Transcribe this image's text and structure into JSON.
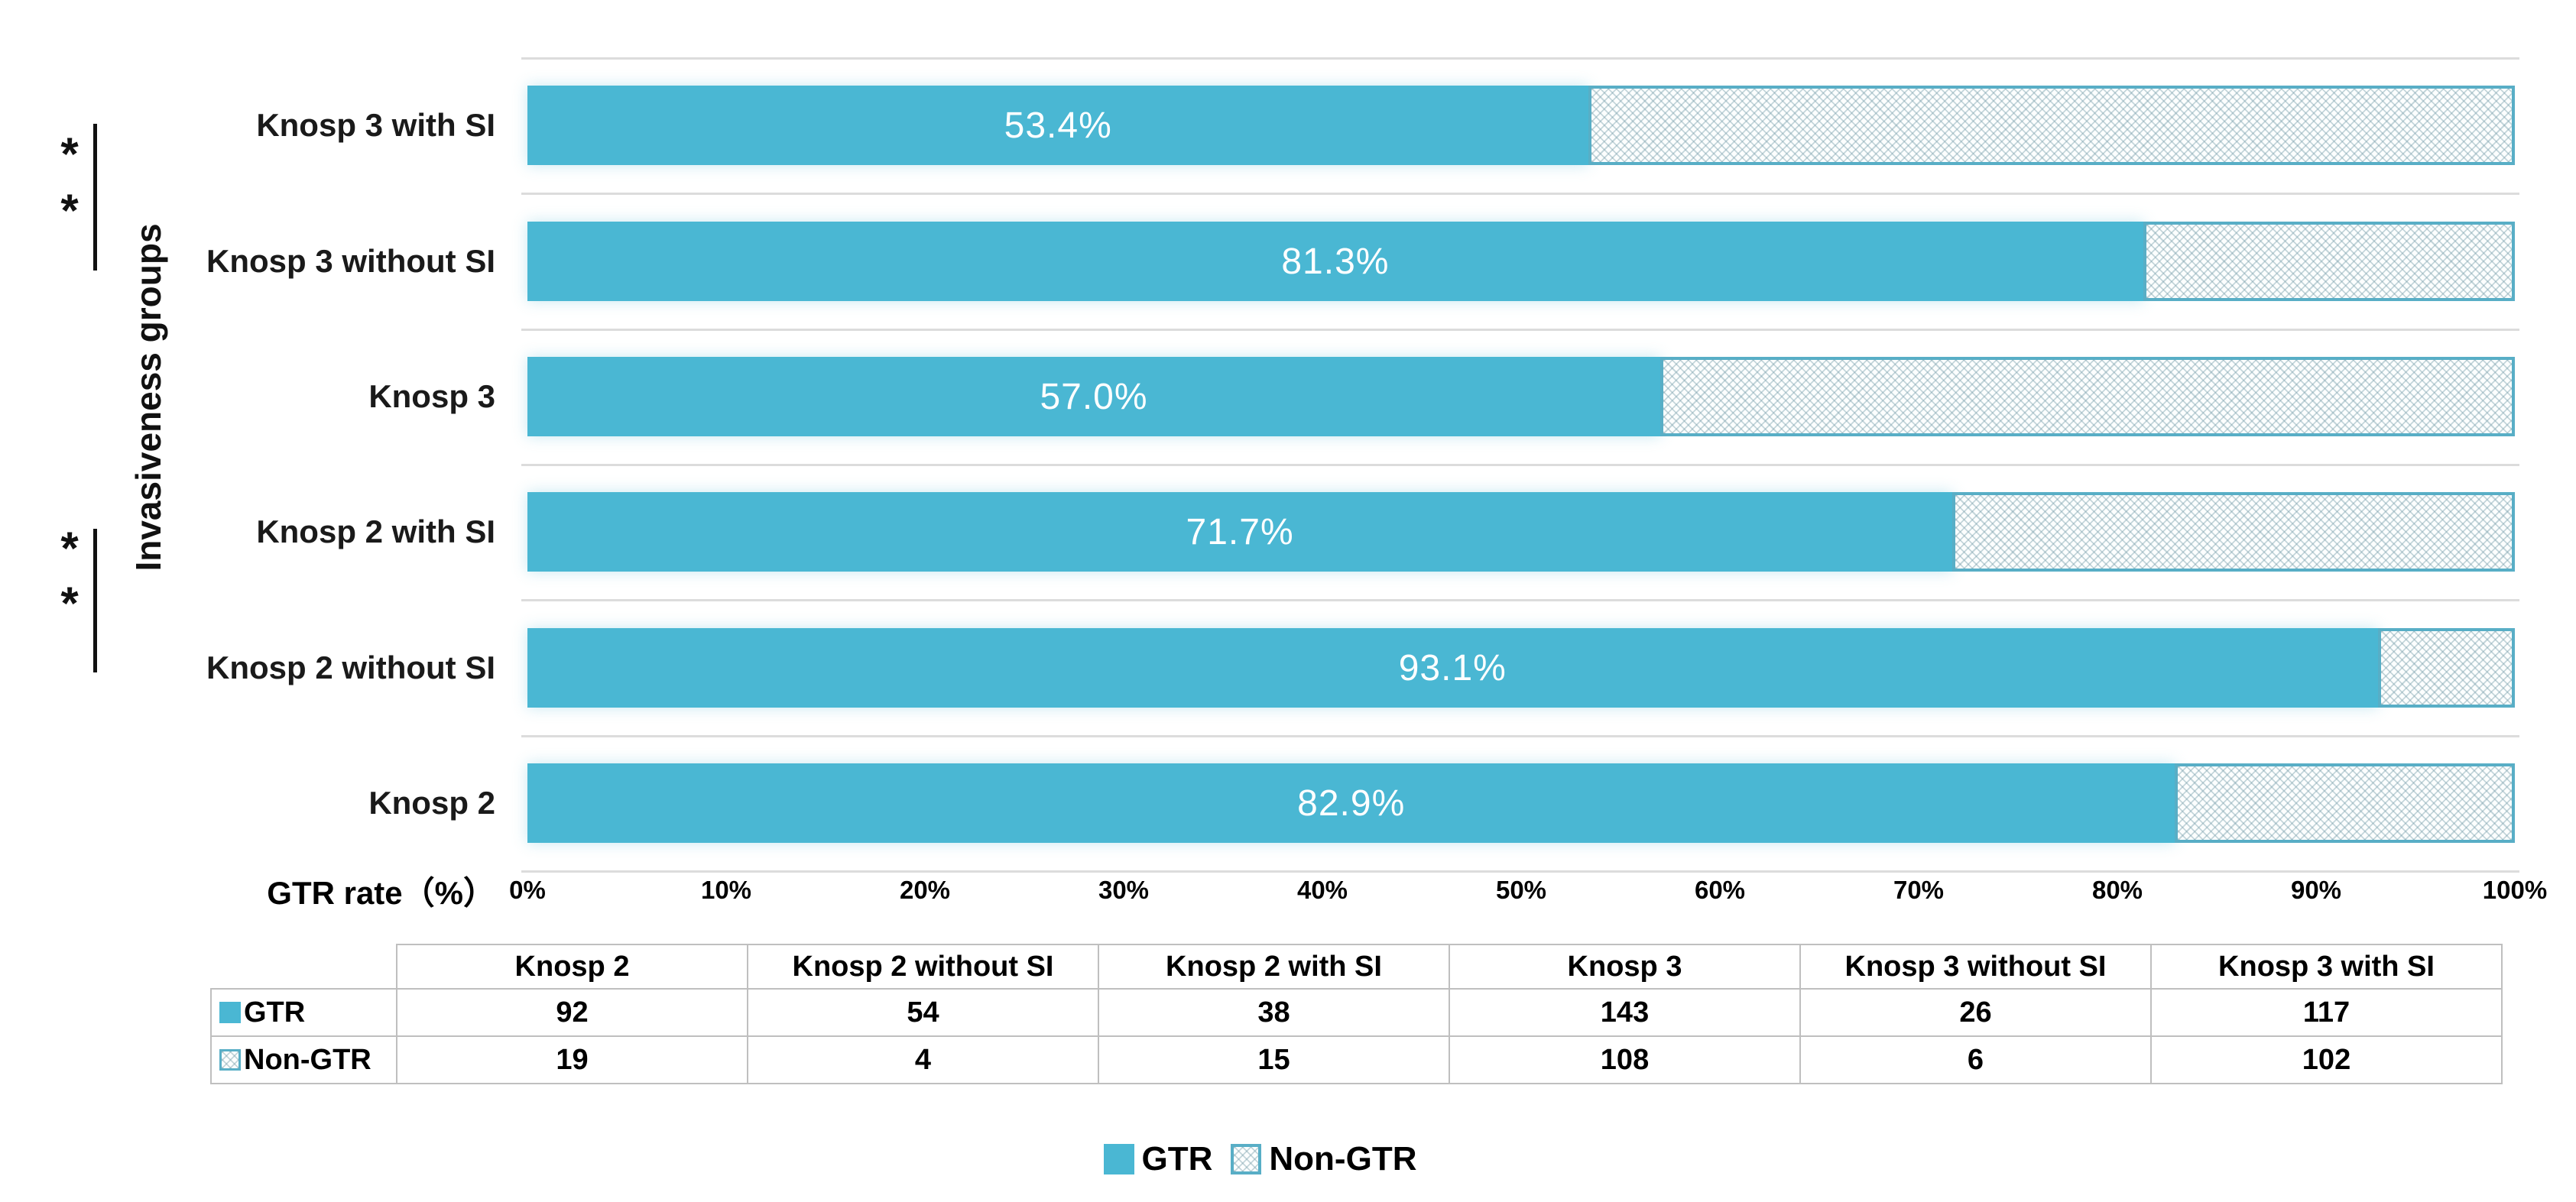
{
  "chart_data": {
    "type": "bar",
    "orientation": "horizontal",
    "stacked": true,
    "title": "",
    "xlabel": "GTR rate（%）",
    "ylabel": "Invasiveness groups",
    "xlim": [
      0,
      100
    ],
    "grid": "category-separators",
    "legend_position": "bottom-center",
    "categories": [
      "Knosp 3 with SI",
      "Knosp 3 without SI",
      "Knosp 3",
      "Knosp 2 with SI",
      "Knosp 2 without SI",
      "Knosp 2"
    ],
    "series": [
      {
        "name": "GTR",
        "values_pct": [
          53.4,
          81.3,
          57.0,
          71.7,
          93.1,
          82.9
        ]
      },
      {
        "name": "Non-GTR",
        "values_pct": [
          46.6,
          18.7,
          43.0,
          28.3,
          6.9,
          17.1
        ]
      }
    ],
    "bar_labels": [
      "53.4%",
      "81.3%",
      "57.0%",
      "71.7%",
      "93.1%",
      "82.9%"
    ],
    "x_ticks": [
      "0%",
      "10%",
      "20%",
      "30%",
      "40%",
      "50%",
      "60%",
      "70%",
      "80%",
      "90%",
      "100%"
    ],
    "significance": [
      {
        "pair": [
          "Knosp 3 with SI",
          "Knosp 3 without SI"
        ],
        "marks": [
          "*",
          "*"
        ]
      },
      {
        "pair": [
          "Knosp 2 with SI",
          "Knosp 2 without SI"
        ],
        "marks": [
          "*",
          "*"
        ]
      }
    ]
  },
  "table": {
    "columns": [
      "Knosp 2",
      "Knosp 2 without SI",
      "Knosp 2 with SI",
      "Knosp 3",
      "Knosp 3 without SI",
      "Knosp 3 with SI"
    ],
    "rows": [
      {
        "label": "GTR",
        "swatch": "solid",
        "values": [
          "92",
          "54",
          "38",
          "143",
          "26",
          "117"
        ]
      },
      {
        "label": "Non-GTR",
        "swatch": "patterned",
        "values": [
          "19",
          "4",
          "15",
          "108",
          "6",
          "102"
        ]
      }
    ]
  },
  "legend": {
    "items": [
      {
        "label": "GTR",
        "swatch": "solid"
      },
      {
        "label": "Non-GTR",
        "swatch": "patterned"
      }
    ]
  },
  "colors": {
    "gtr_fill": "#4ab7d3",
    "non_gtr_pattern_border": "#58aec6",
    "non_gtr_pattern_dot": "#789eaa",
    "gridline": "#dcdcdc",
    "table_border": "#bfbfbf",
    "bar_label_text": "#ffffff",
    "text": "#111111"
  }
}
